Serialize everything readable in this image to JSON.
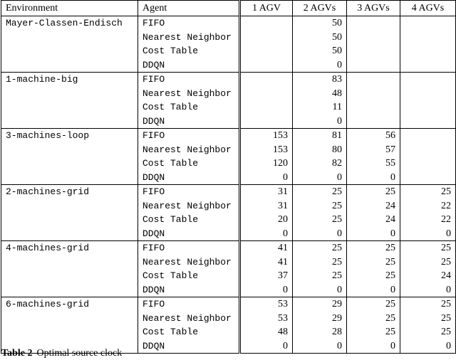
{
  "table": {
    "columns": [
      "Environment",
      "Agent",
      "1 AGV",
      "2 AGVs",
      "3 AGVs",
      "4 AGVs"
    ],
    "groups": [
      {
        "environment": "Mayer-Classen-Endisch",
        "rows": [
          {
            "agent": "FIFO",
            "values": [
              null,
              50,
              null,
              null
            ]
          },
          {
            "agent": "Nearest Neighbor",
            "values": [
              null,
              50,
              null,
              null
            ]
          },
          {
            "agent": "Cost Table",
            "values": [
              null,
              50,
              null,
              null
            ]
          },
          {
            "agent": "DDQN",
            "values": [
              null,
              0,
              null,
              null
            ]
          }
        ]
      },
      {
        "environment": "1-machine-big",
        "rows": [
          {
            "agent": "FIFO",
            "values": [
              null,
              83,
              null,
              null
            ]
          },
          {
            "agent": "Nearest Neighbor",
            "values": [
              null,
              48,
              null,
              null
            ]
          },
          {
            "agent": "Cost Table",
            "values": [
              null,
              11,
              null,
              null
            ]
          },
          {
            "agent": "DDQN",
            "values": [
              null,
              0,
              null,
              null
            ]
          }
        ]
      },
      {
        "environment": "3-machines-loop",
        "rows": [
          {
            "agent": "FIFO",
            "values": [
              153,
              81,
              56,
              null
            ]
          },
          {
            "agent": "Nearest Neighbor",
            "values": [
              153,
              80,
              57,
              null
            ]
          },
          {
            "agent": "Cost Table",
            "values": [
              120,
              82,
              55,
              null
            ]
          },
          {
            "agent": "DDQN",
            "values": [
              0,
              0,
              0,
              null
            ]
          }
        ]
      },
      {
        "environment": "2-machines-grid",
        "rows": [
          {
            "agent": "FIFO",
            "values": [
              31,
              25,
              25,
              25
            ]
          },
          {
            "agent": "Nearest Neighbor",
            "values": [
              31,
              25,
              24,
              22
            ]
          },
          {
            "agent": "Cost Table",
            "values": [
              20,
              25,
              24,
              22
            ]
          },
          {
            "agent": "DDQN",
            "values": [
              0,
              0,
              0,
              0
            ]
          }
        ]
      },
      {
        "environment": "4-machines-grid",
        "rows": [
          {
            "agent": "FIFO",
            "values": [
              41,
              25,
              25,
              25
            ]
          },
          {
            "agent": "Nearest Neighbor",
            "values": [
              41,
              25,
              25,
              25
            ]
          },
          {
            "agent": "Cost Table",
            "values": [
              37,
              25,
              25,
              24
            ]
          },
          {
            "agent": "DDQN",
            "values": [
              0,
              0,
              0,
              0
            ]
          }
        ]
      },
      {
        "environment": "6-machines-grid",
        "rows": [
          {
            "agent": "FIFO",
            "values": [
              53,
              29,
              25,
              25
            ]
          },
          {
            "agent": "Nearest Neighbor",
            "values": [
              53,
              29,
              25,
              25
            ]
          },
          {
            "agent": "Cost Table",
            "values": [
              48,
              28,
              25,
              25
            ]
          },
          {
            "agent": "DDQN",
            "values": [
              0,
              0,
              0,
              0
            ]
          }
        ]
      }
    ]
  },
  "caption": {
    "label": "Table 2",
    "text": "Optimal source clock"
  }
}
